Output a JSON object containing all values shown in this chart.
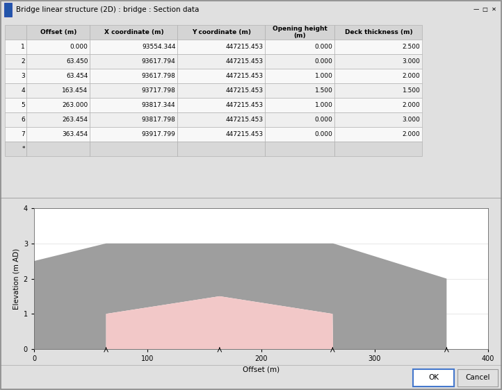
{
  "title": "Bridge linear structure (2D) : bridge : Section data",
  "table_headers": [
    "",
    "Offset (m)",
    "X coordinate (m)",
    "Y coordinate (m)",
    "Opening height\n(m)",
    "Deck thickness (m)"
  ],
  "table_rows": [
    [
      "1",
      "0.000",
      "93554.344",
      "447215.453",
      "0.000",
      "2.500"
    ],
    [
      "2",
      "63.450",
      "93617.794",
      "447215.453",
      "0.000",
      "3.000"
    ],
    [
      "3",
      "63.454",
      "93617.798",
      "447215.453",
      "1.000",
      "2.000"
    ],
    [
      "4",
      "163.454",
      "93717.798",
      "447215.453",
      "1.500",
      "1.500"
    ],
    [
      "5",
      "263.000",
      "93817.344",
      "447215.453",
      "1.000",
      "2.000"
    ],
    [
      "6",
      "263.454",
      "93817.798",
      "447215.453",
      "0.000",
      "3.000"
    ],
    [
      "7",
      "363.454",
      "93917.799",
      "447215.453",
      "0.000",
      "2.000"
    ]
  ],
  "offsets": [
    0.0,
    63.45,
    63.454,
    163.454,
    263.0,
    263.454,
    363.454
  ],
  "opening_heights": [
    0.0,
    0.0,
    1.0,
    1.5,
    1.0,
    0.0,
    0.0
  ],
  "deck_thicknesses": [
    2.5,
    3.0,
    2.0,
    1.5,
    2.0,
    3.0,
    2.0
  ],
  "xlabel": "Offset (m)",
  "ylabel": "Elevation (m AD)",
  "xlim": [
    0,
    400
  ],
  "ylim": [
    0.0,
    4.0
  ],
  "yticks": [
    0.0,
    1.0,
    2.0,
    3.0,
    4.0
  ],
  "xticks": [
    0,
    100,
    200,
    300,
    400
  ],
  "bg_color": "#ececec",
  "window_bg": "#e0e0e0",
  "table_area_bg": "#e8e8e8",
  "deck_color": "#9e9e9e",
  "opening_color": "#f2c8c8",
  "titlebar_bg": "#f0f0f0",
  "button_ok_border": "#4477cc",
  "header_color": "#d4d4d4",
  "row_odd": "#f8f8f8",
  "row_even": "#efefef",
  "row_star": "#d8d8d8",
  "col_fracs": [
    0.046,
    0.135,
    0.187,
    0.187,
    0.148,
    0.187
  ],
  "graph_bg": "#ffffff"
}
